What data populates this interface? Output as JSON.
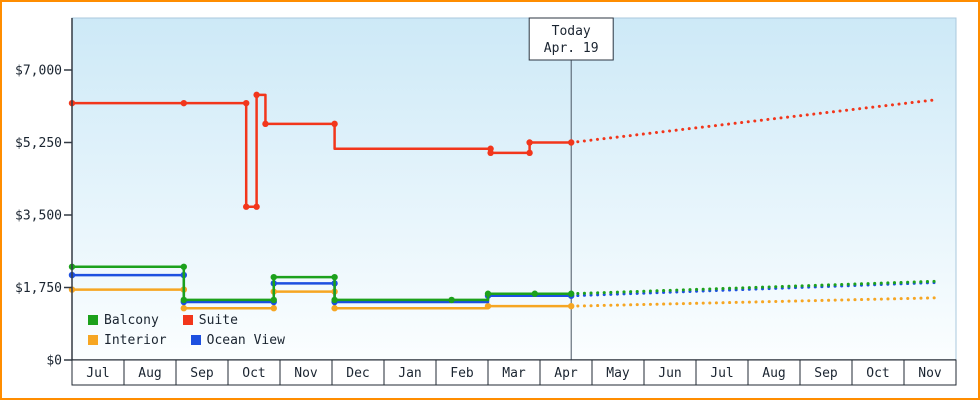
{
  "frame": {
    "border_color": "#ff8d00"
  },
  "plot": {
    "bg_top_color": "#cde9f7",
    "bg_bottom_color": "#fbfeff",
    "axis_color": "#333a44",
    "today_line_color": "#4a5663"
  },
  "legend": {
    "items": [
      {
        "label": "Balcony",
        "color": "#1ca11c"
      },
      {
        "label": "Suite",
        "color": "#f2361b"
      },
      {
        "label": "Interior",
        "color": "#f6a623"
      },
      {
        "label": "Ocean View",
        "color": "#1d50e0"
      }
    ]
  },
  "chart_data": {
    "type": "line",
    "x_months": [
      "Jul",
      "Aug",
      "Sep",
      "Oct",
      "Nov",
      "Dec",
      "Jan",
      "Feb",
      "Mar",
      "Apr",
      "May",
      "Jun",
      "Jul",
      "Aug",
      "Sep",
      "Oct",
      "Nov"
    ],
    "y_axis": {
      "tick_values": [
        0,
        1750,
        3500,
        5250,
        7000
      ],
      "tick_labels": [
        "$0",
        "$1,750",
        "$3,500",
        "$5,250",
        "$7,000"
      ],
      "ylim": [
        0,
        8250
      ]
    },
    "today": {
      "label": "Today",
      "date": "Apr. 19",
      "month_position": 9.6
    },
    "legend_position": "bottom-left",
    "grid": false,
    "series": [
      {
        "name": "Interior",
        "color": "#f6a623",
        "solid_points": [
          [
            0,
            1700
          ],
          [
            2.15,
            1700
          ],
          [
            2.15,
            1250
          ],
          [
            3.88,
            1250
          ],
          [
            3.88,
            1650
          ],
          [
            5.05,
            1650
          ],
          [
            5.05,
            1250
          ],
          [
            8.0,
            1250
          ],
          [
            8.0,
            1300
          ],
          [
            9.6,
            1300
          ]
        ],
        "markers": [
          [
            0,
            1700
          ],
          [
            2.15,
            1700
          ],
          [
            2.15,
            1250
          ],
          [
            3.88,
            1250
          ],
          [
            3.88,
            1650
          ],
          [
            5.05,
            1650
          ],
          [
            5.05,
            1250
          ],
          [
            8.0,
            1300
          ],
          [
            9.6,
            1300
          ]
        ],
        "forecast_points": [
          [
            9.6,
            1300
          ],
          [
            16.6,
            1500
          ]
        ]
      },
      {
        "name": "Ocean View",
        "color": "#1d50e0",
        "solid_points": [
          [
            0,
            2050
          ],
          [
            2.15,
            2050
          ],
          [
            2.15,
            1400
          ],
          [
            3.88,
            1400
          ],
          [
            3.88,
            1850
          ],
          [
            5.05,
            1850
          ],
          [
            5.05,
            1400
          ],
          [
            8.0,
            1400
          ],
          [
            8.0,
            1550
          ],
          [
            9.6,
            1550
          ]
        ],
        "markers": [
          [
            0,
            2050
          ],
          [
            2.15,
            2050
          ],
          [
            2.15,
            1400
          ],
          [
            3.88,
            1400
          ],
          [
            3.88,
            1850
          ],
          [
            5.05,
            1850
          ],
          [
            5.05,
            1400
          ],
          [
            8.0,
            1550
          ],
          [
            9.6,
            1550
          ]
        ],
        "forecast_points": [
          [
            9.6,
            1550
          ],
          [
            16.6,
            1870
          ]
        ]
      },
      {
        "name": "Balcony",
        "color": "#1ca11c",
        "solid_points": [
          [
            0,
            2250
          ],
          [
            2.15,
            2250
          ],
          [
            2.15,
            1450
          ],
          [
            3.88,
            1450
          ],
          [
            3.88,
            2000
          ],
          [
            5.05,
            2000
          ],
          [
            5.05,
            1450
          ],
          [
            8.0,
            1450
          ],
          [
            8.0,
            1600
          ],
          [
            9.6,
            1600
          ]
        ],
        "markers": [
          [
            0,
            2250
          ],
          [
            2.15,
            2250
          ],
          [
            2.15,
            1450
          ],
          [
            3.88,
            1450
          ],
          [
            3.88,
            2000
          ],
          [
            5.05,
            2000
          ],
          [
            5.05,
            1450
          ],
          [
            7.3,
            1450
          ],
          [
            8.0,
            1600
          ],
          [
            8.9,
            1600
          ],
          [
            9.6,
            1600
          ]
        ],
        "forecast_points": [
          [
            9.6,
            1600
          ],
          [
            16.6,
            1900
          ]
        ]
      },
      {
        "name": "Suite",
        "color": "#f2361b",
        "solid_points": [
          [
            0,
            6200
          ],
          [
            2.15,
            6200
          ],
          [
            3.35,
            6200
          ],
          [
            3.35,
            3700
          ],
          [
            3.55,
            3700
          ],
          [
            3.55,
            6400
          ],
          [
            3.72,
            6400
          ],
          [
            3.72,
            5700
          ],
          [
            5.05,
            5700
          ],
          [
            5.05,
            5100
          ],
          [
            8.05,
            5100
          ],
          [
            8.05,
            5000
          ],
          [
            8.8,
            5000
          ],
          [
            8.8,
            5250
          ],
          [
            9.6,
            5250
          ]
        ],
        "markers": [
          [
            0,
            6200
          ],
          [
            2.15,
            6200
          ],
          [
            3.35,
            6200
          ],
          [
            3.35,
            3700
          ],
          [
            3.55,
            3700
          ],
          [
            3.55,
            6400
          ],
          [
            3.72,
            5700
          ],
          [
            5.05,
            5700
          ],
          [
            8.05,
            5100
          ],
          [
            8.05,
            5000
          ],
          [
            8.8,
            5000
          ],
          [
            8.8,
            5250
          ],
          [
            9.6,
            5250
          ]
        ],
        "forecast_points": [
          [
            9.6,
            5250
          ],
          [
            16.6,
            6280
          ]
        ]
      }
    ]
  }
}
